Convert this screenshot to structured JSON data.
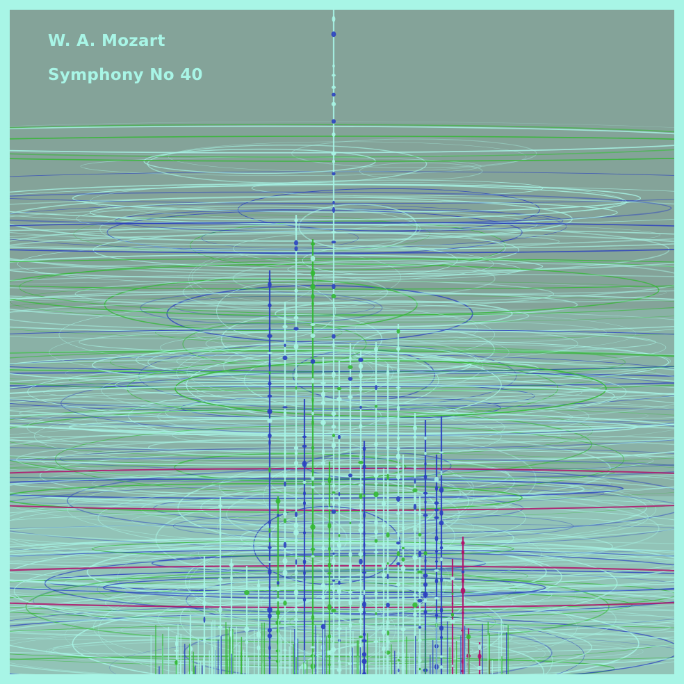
{
  "header": {
    "composer": "W. A. Mozart",
    "work": "Symphony No 40"
  },
  "palette": {
    "border": "#a8f5e6",
    "background": "#84a399",
    "mint": "#a8f5e6",
    "green": "#33b833",
    "blue": "#2a3fc0",
    "magenta": "#b0106a"
  }
}
